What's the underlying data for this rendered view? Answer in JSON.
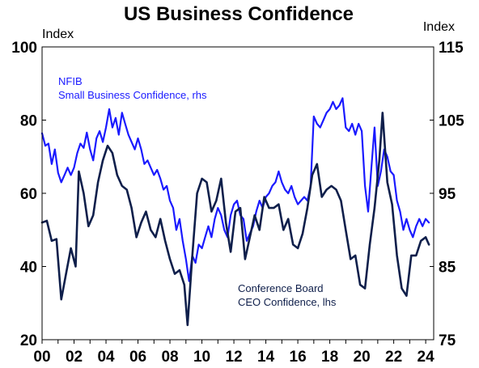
{
  "chart_data": {
    "type": "line",
    "title": "US Business Confidence",
    "left_axis": {
      "unit": "Index",
      "ylim": [
        20,
        100
      ],
      "ticks": [
        "20",
        "40",
        "60",
        "80",
        "100"
      ]
    },
    "right_axis": {
      "unit": "Index",
      "ylim": [
        75,
        115
      ],
      "ticks": [
        "75",
        "85",
        "95",
        "105",
        "115"
      ]
    },
    "x_range": [
      2000,
      2024.5
    ],
    "x_ticks": [
      {
        "label": "00",
        "x": 2000
      },
      {
        "label": "02",
        "x": 2002
      },
      {
        "label": "04",
        "x": 2004
      },
      {
        "label": "06",
        "x": 2006
      },
      {
        "label": "08",
        "x": 2008
      },
      {
        "label": "10",
        "x": 2010
      },
      {
        "label": "12",
        "x": 2012
      },
      {
        "label": "14",
        "x": 2014
      },
      {
        "label": "16",
        "x": 2016
      },
      {
        "label": "18",
        "x": 2018
      },
      {
        "label": "20",
        "x": 2020
      },
      {
        "label": "22",
        "x": 2022
      },
      {
        "label": "24",
        "x": 2024
      }
    ],
    "series": [
      {
        "name": "Small Business Confidence, rhs",
        "label_lines": [
          "NFIB",
          "Small Business Confidence, rhs"
        ],
        "axis": "right",
        "color": "#1a1aff",
        "points": [
          [
            2000.0,
            103.2
          ],
          [
            2000.2,
            101.5
          ],
          [
            2000.4,
            101.8
          ],
          [
            2000.6,
            99.0
          ],
          [
            2000.8,
            101.0
          ],
          [
            2001.0,
            97.8
          ],
          [
            2001.2,
            96.5
          ],
          [
            2001.4,
            97.5
          ],
          [
            2001.6,
            98.5
          ],
          [
            2001.8,
            97.5
          ],
          [
            2002.0,
            98.5
          ],
          [
            2002.2,
            100.5
          ],
          [
            2002.4,
            101.8
          ],
          [
            2002.6,
            101.2
          ],
          [
            2002.8,
            103.3
          ],
          [
            2003.0,
            101.0
          ],
          [
            2003.2,
            99.5
          ],
          [
            2003.4,
            102.5
          ],
          [
            2003.6,
            103.5
          ],
          [
            2003.8,
            102.0
          ],
          [
            2004.0,
            104.0
          ],
          [
            2004.2,
            106.5
          ],
          [
            2004.4,
            104.0
          ],
          [
            2004.6,
            105.3
          ],
          [
            2004.8,
            103.0
          ],
          [
            2005.0,
            106.0
          ],
          [
            2005.2,
            104.5
          ],
          [
            2005.4,
            103.0
          ],
          [
            2005.6,
            102.0
          ],
          [
            2005.8,
            101.0
          ],
          [
            2006.0,
            102.5
          ],
          [
            2006.2,
            101.0
          ],
          [
            2006.4,
            99.0
          ],
          [
            2006.6,
            99.5
          ],
          [
            2006.8,
            98.5
          ],
          [
            2007.0,
            97.5
          ],
          [
            2007.2,
            98.2
          ],
          [
            2007.4,
            97.0
          ],
          [
            2007.6,
            95.5
          ],
          [
            2007.8,
            96.0
          ],
          [
            2008.0,
            94.0
          ],
          [
            2008.2,
            93.0
          ],
          [
            2008.4,
            90.0
          ],
          [
            2008.6,
            91.5
          ],
          [
            2008.8,
            88.5
          ],
          [
            2009.0,
            86.0
          ],
          [
            2009.2,
            83.0
          ],
          [
            2009.4,
            86.5
          ],
          [
            2009.6,
            85.5
          ],
          [
            2009.8,
            88.0
          ],
          [
            2010.0,
            87.5
          ],
          [
            2010.2,
            89.0
          ],
          [
            2010.4,
            90.5
          ],
          [
            2010.6,
            89.0
          ],
          [
            2010.8,
            91.5
          ],
          [
            2011.0,
            93.0
          ],
          [
            2011.2,
            92.0
          ],
          [
            2011.4,
            90.0
          ],
          [
            2011.6,
            89.0
          ],
          [
            2011.8,
            92.0
          ],
          [
            2012.0,
            93.5
          ],
          [
            2012.2,
            94.0
          ],
          [
            2012.4,
            92.0
          ],
          [
            2012.6,
            91.5
          ],
          [
            2012.8,
            88.5
          ],
          [
            2013.0,
            89.5
          ],
          [
            2013.2,
            90.5
          ],
          [
            2013.4,
            92.5
          ],
          [
            2013.6,
            94.0
          ],
          [
            2013.8,
            93.0
          ],
          [
            2014.0,
            94.5
          ],
          [
            2014.2,
            95.0
          ],
          [
            2014.4,
            96.0
          ],
          [
            2014.6,
            96.5
          ],
          [
            2014.8,
            98.0
          ],
          [
            2015.0,
            96.5
          ],
          [
            2015.2,
            95.5
          ],
          [
            2015.4,
            95.0
          ],
          [
            2015.6,
            96.0
          ],
          [
            2015.8,
            94.5
          ],
          [
            2016.0,
            93.5
          ],
          [
            2016.2,
            94.0
          ],
          [
            2016.4,
            94.5
          ],
          [
            2016.6,
            94.0
          ],
          [
            2016.8,
            96.0
          ],
          [
            2017.0,
            105.5
          ],
          [
            2017.2,
            104.5
          ],
          [
            2017.4,
            104.0
          ],
          [
            2017.6,
            105.0
          ],
          [
            2017.8,
            106.0
          ],
          [
            2018.0,
            106.5
          ],
          [
            2018.2,
            107.5
          ],
          [
            2018.4,
            106.5
          ],
          [
            2018.6,
            107.0
          ],
          [
            2018.8,
            108.0
          ],
          [
            2019.0,
            104.0
          ],
          [
            2019.2,
            103.5
          ],
          [
            2019.4,
            104.5
          ],
          [
            2019.6,
            103.0
          ],
          [
            2019.8,
            104.5
          ],
          [
            2020.0,
            103.5
          ],
          [
            2020.2,
            96.0
          ],
          [
            2020.4,
            92.5
          ],
          [
            2020.6,
            98.5
          ],
          [
            2020.8,
            104.0
          ],
          [
            2021.0,
            96.0
          ],
          [
            2021.2,
            98.0
          ],
          [
            2021.4,
            101.0
          ],
          [
            2021.6,
            100.0
          ],
          [
            2021.8,
            98.0
          ],
          [
            2022.0,
            97.5
          ],
          [
            2022.2,
            94.0
          ],
          [
            2022.4,
            92.5
          ],
          [
            2022.6,
            90.0
          ],
          [
            2022.8,
            91.5
          ],
          [
            2023.0,
            90.0
          ],
          [
            2023.2,
            89.0
          ],
          [
            2023.4,
            90.5
          ],
          [
            2023.6,
            91.5
          ],
          [
            2023.8,
            90.5
          ],
          [
            2024.0,
            91.5
          ],
          [
            2024.2,
            91.0
          ]
        ]
      },
      {
        "name": "CEO Confidence, lhs",
        "label_lines": [
          "Conference Board",
          "CEO Confidence, lhs"
        ],
        "axis": "left",
        "color": "#0f1f4b",
        "points": [
          [
            2000.0,
            52.0
          ],
          [
            2000.3,
            52.5
          ],
          [
            2000.6,
            47.0
          ],
          [
            2000.9,
            47.5
          ],
          [
            2001.2,
            31.0
          ],
          [
            2001.5,
            38.0
          ],
          [
            2001.8,
            45.0
          ],
          [
            2002.1,
            40.0
          ],
          [
            2002.3,
            66.0
          ],
          [
            2002.6,
            60.0
          ],
          [
            2002.9,
            51.0
          ],
          [
            2003.2,
            54.0
          ],
          [
            2003.5,
            63.0
          ],
          [
            2003.8,
            69.0
          ],
          [
            2004.1,
            73.0
          ],
          [
            2004.4,
            71.0
          ],
          [
            2004.7,
            65.0
          ],
          [
            2005.0,
            62.0
          ],
          [
            2005.3,
            61.0
          ],
          [
            2005.6,
            56.0
          ],
          [
            2005.9,
            48.0
          ],
          [
            2006.2,
            52.0
          ],
          [
            2006.5,
            55.0
          ],
          [
            2006.8,
            50.0
          ],
          [
            2007.1,
            48.0
          ],
          [
            2007.4,
            53.0
          ],
          [
            2007.7,
            47.0
          ],
          [
            2008.0,
            42.0
          ],
          [
            2008.3,
            38.0
          ],
          [
            2008.6,
            39.0
          ],
          [
            2008.9,
            35.0
          ],
          [
            2009.1,
            24.0
          ],
          [
            2009.4,
            43.0
          ],
          [
            2009.7,
            60.0
          ],
          [
            2010.0,
            64.0
          ],
          [
            2010.3,
            63.0
          ],
          [
            2010.6,
            55.0
          ],
          [
            2010.9,
            58.0
          ],
          [
            2011.2,
            64.0
          ],
          [
            2011.5,
            52.0
          ],
          [
            2011.8,
            44.0
          ],
          [
            2012.1,
            55.0
          ],
          [
            2012.4,
            56.0
          ],
          [
            2012.7,
            42.0
          ],
          [
            2013.0,
            48.0
          ],
          [
            2013.3,
            54.0
          ],
          [
            2013.6,
            50.0
          ],
          [
            2013.9,
            59.0
          ],
          [
            2014.2,
            56.0
          ],
          [
            2014.5,
            56.0
          ],
          [
            2014.8,
            57.0
          ],
          [
            2015.1,
            50.0
          ],
          [
            2015.4,
            53.0
          ],
          [
            2015.7,
            46.0
          ],
          [
            2016.0,
            45.0
          ],
          [
            2016.3,
            49.0
          ],
          [
            2016.6,
            56.0
          ],
          [
            2016.9,
            65.0
          ],
          [
            2017.2,
            68.0
          ],
          [
            2017.5,
            59.0
          ],
          [
            2017.8,
            61.0
          ],
          [
            2018.1,
            62.0
          ],
          [
            2018.4,
            61.0
          ],
          [
            2018.7,
            58.0
          ],
          [
            2019.0,
            50.0
          ],
          [
            2019.3,
            42.0
          ],
          [
            2019.6,
            43.0
          ],
          [
            2019.9,
            35.0
          ],
          [
            2020.2,
            34.0
          ],
          [
            2020.5,
            46.0
          ],
          [
            2020.8,
            56.0
          ],
          [
            2021.1,
            69.0
          ],
          [
            2021.3,
            82.0
          ],
          [
            2021.6,
            63.0
          ],
          [
            2021.9,
            57.0
          ],
          [
            2022.2,
            43.0
          ],
          [
            2022.5,
            34.0
          ],
          [
            2022.8,
            32.0
          ],
          [
            2023.1,
            43.0
          ],
          [
            2023.4,
            43.0
          ],
          [
            2023.7,
            47.0
          ],
          [
            2024.0,
            48.0
          ],
          [
            2024.2,
            46.0
          ]
        ]
      }
    ]
  }
}
